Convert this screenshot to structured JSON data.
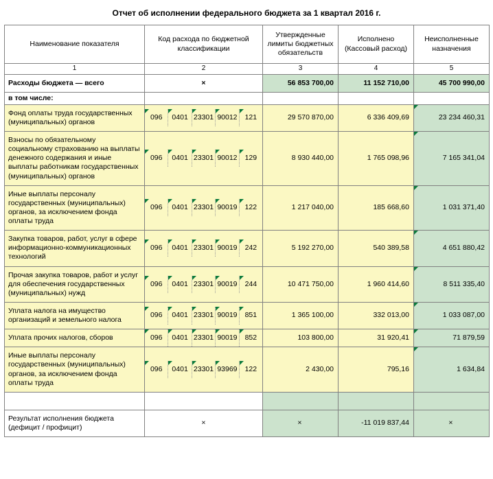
{
  "title": "Отчет об исполнении федерального бюджета за 1 квартал 2016 г.",
  "headers": {
    "name": "Наименование показателя",
    "code": "Код расхода\nпо бюджетной классификации",
    "limits": "Утвержденные лимиты бюджетных обязательств",
    "executed": "Исполнено\n(Кассовый расход)",
    "unexec": "Неисполненные назначения"
  },
  "colnums": [
    "1",
    "2",
    "3",
    "4",
    "5"
  ],
  "total": {
    "name": "Расходы бюджета — всего",
    "code_x": "×",
    "limits": "56 853 700,00",
    "executed": "11 152 710,00",
    "unexec": "45 700 990,00"
  },
  "subhead": "в том числе:",
  "rows": [
    {
      "name": "Фонд оплаты труда государственных (муниципальных) органов",
      "codes": [
        "096",
        "0401",
        "23301",
        "90012",
        "121"
      ],
      "limits": "29 570 870,00",
      "executed": "6 336 409,69",
      "unexec": "23 234 460,31"
    },
    {
      "name": "Взносы по обязательному социальному страхованию на выплаты денежного содержания и иные выплаты работникам государственных (муниципальных) органов",
      "codes": [
        "096",
        "0401",
        "23301",
        "90012",
        "129"
      ],
      "limits": "8 930 440,00",
      "executed": "1 765 098,96",
      "unexec": "7 165 341,04"
    },
    {
      "name": "Иные выплаты персоналу государственных (муниципальных) органов, за исключением фонда оплаты труда",
      "codes": [
        "096",
        "0401",
        "23301",
        "90019",
        "122"
      ],
      "limits": "1 217 040,00",
      "executed": "185 668,60",
      "unexec": "1 031 371,40"
    },
    {
      "name": "Закупка товаров, работ, услуг в сфере информационно-коммуникационных технологий",
      "codes": [
        "096",
        "0401",
        "23301",
        "90019",
        "242"
      ],
      "limits": "5 192 270,00",
      "executed": "540 389,58",
      "unexec": "4 651 880,42"
    },
    {
      "name": "Прочая закупка товаров, работ и услуг для обеспечения государственных (муниципальных) нужд",
      "codes": [
        "096",
        "0401",
        "23301",
        "90019",
        "244"
      ],
      "limits": "10 471 750,00",
      "executed": "1 960 414,60",
      "unexec": "8 511 335,40"
    },
    {
      "name": "Уплата налога на имущество организаций и земельного налога",
      "codes": [
        "096",
        "0401",
        "23301",
        "90019",
        "851"
      ],
      "limits": "1 365 100,00",
      "executed": "332 013,00",
      "unexec": "1 033 087,00"
    },
    {
      "name": "Уплата прочих налогов, сборов",
      "codes": [
        "096",
        "0401",
        "23301",
        "90019",
        "852"
      ],
      "limits": "103 800,00",
      "executed": "31 920,41",
      "unexec": "71 879,59"
    },
    {
      "name": "Иные выплаты персоналу государственных (муниципальных) органов, за исключением фонда оплаты труда",
      "codes": [
        "096",
        "0401",
        "23301",
        "93969",
        "122"
      ],
      "limits": "2 430,00",
      "executed": "795,16",
      "unexec": "1 634,84"
    }
  ],
  "result": {
    "name": "Результат исполнения бюджета (дефицит / профицит)",
    "code_x": "×",
    "limits": "×",
    "executed": "-11 019 837,44",
    "unexec": "×"
  },
  "colors": {
    "yellow": "#fbf8c3",
    "green": "#cce3cd",
    "border": "#808080",
    "tri": "#0a7a3b"
  }
}
